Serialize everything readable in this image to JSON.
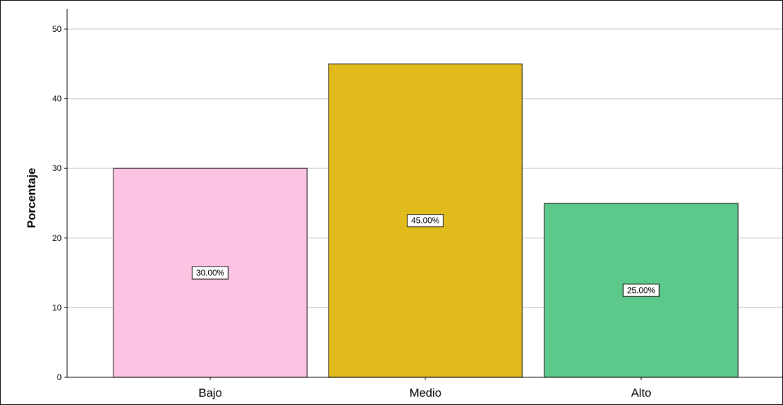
{
  "chart_data": {
    "type": "bar",
    "title": "",
    "xlabel": "",
    "ylabel": "Porcentaje",
    "categories": [
      "Bajo",
      "Medio",
      "Alto"
    ],
    "values": [
      30,
      45,
      25
    ],
    "data_labels": [
      "30.00%",
      "45.00%",
      "25.00%"
    ],
    "bar_colors": [
      "#fdc3e3",
      "#e1ba1c",
      "#5cc98a"
    ],
    "ylim": [
      0,
      50
    ],
    "yticks": [
      0,
      10,
      20,
      30,
      40,
      50
    ],
    "grid": "horizontal",
    "legend": "none"
  }
}
